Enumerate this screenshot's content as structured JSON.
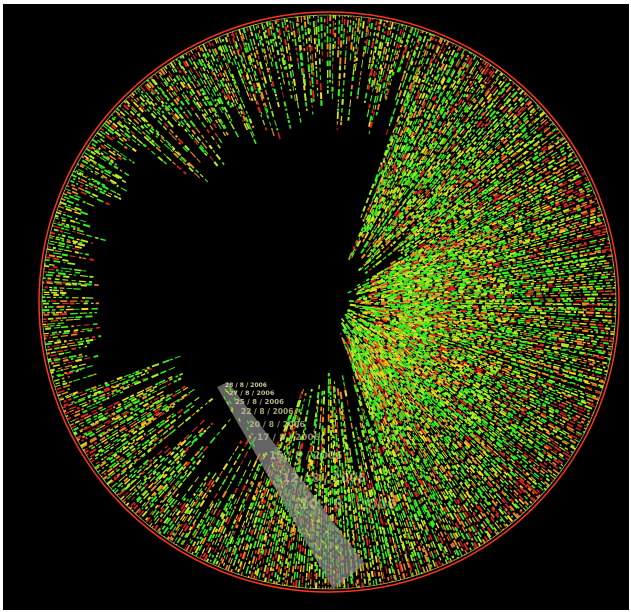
{
  "visualization": {
    "colors": {
      "background": "#000000",
      "frame": "#ffffff",
      "green": "#33ee22",
      "lime": "#aaee22",
      "yellow": "#eedd22",
      "orange": "#ee8822",
      "red": "#dd2222",
      "boundary_outer": "#ff3322",
      "boundary_inner": "#ffee55",
      "selection_band": "#8a8a8a",
      "label_text": "#d9d2a0"
    },
    "selection_labels": [
      "28 / 8 / 2006",
      "27 / 8 / 2006",
      "25 / 8 / 2006",
      "22 / 8 / 2006",
      "20 / 8 / 2006",
      "17 / 8 / 2006",
      "15 / 8 / 2006",
      "12 / 8 / 2006",
      "10 / 8 / 2006"
    ]
  }
}
